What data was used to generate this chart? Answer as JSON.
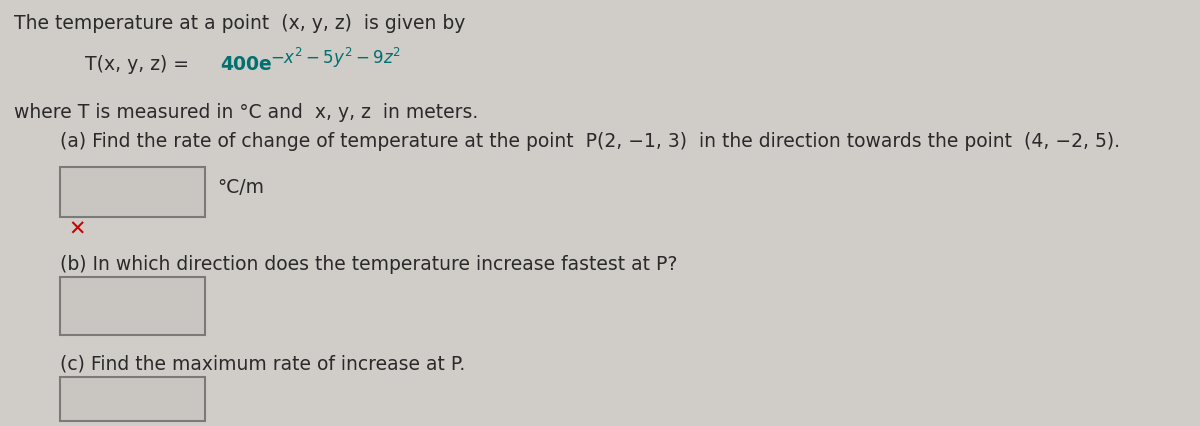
{
  "bg_color": "#d0ccc8",
  "text_color": "#2a2a2a",
  "red_color": "#cc0000",
  "teal_color": "#007070",
  "line1": "The temperature at a point  (x, y, z)  is given by",
  "line3": "where T is measured in °C and  x, y, z  in meters.",
  "part_a": "(a) Find the rate of change of temperature at the point  P(2, −1, 3)  in the direction towards the point  (4, −2, 5).",
  "unit_a": "°C/m",
  "part_b": "(b) In which direction does the temperature increase fastest at P?",
  "part_c": "(c) Find the maximum rate of increase at P.",
  "box_color": "#c9c5c1",
  "box_edge_color": "#7a7a78",
  "font_size_main": 13.5,
  "fig_width": 12.0,
  "fig_height": 4.27,
  "dpi": 100
}
